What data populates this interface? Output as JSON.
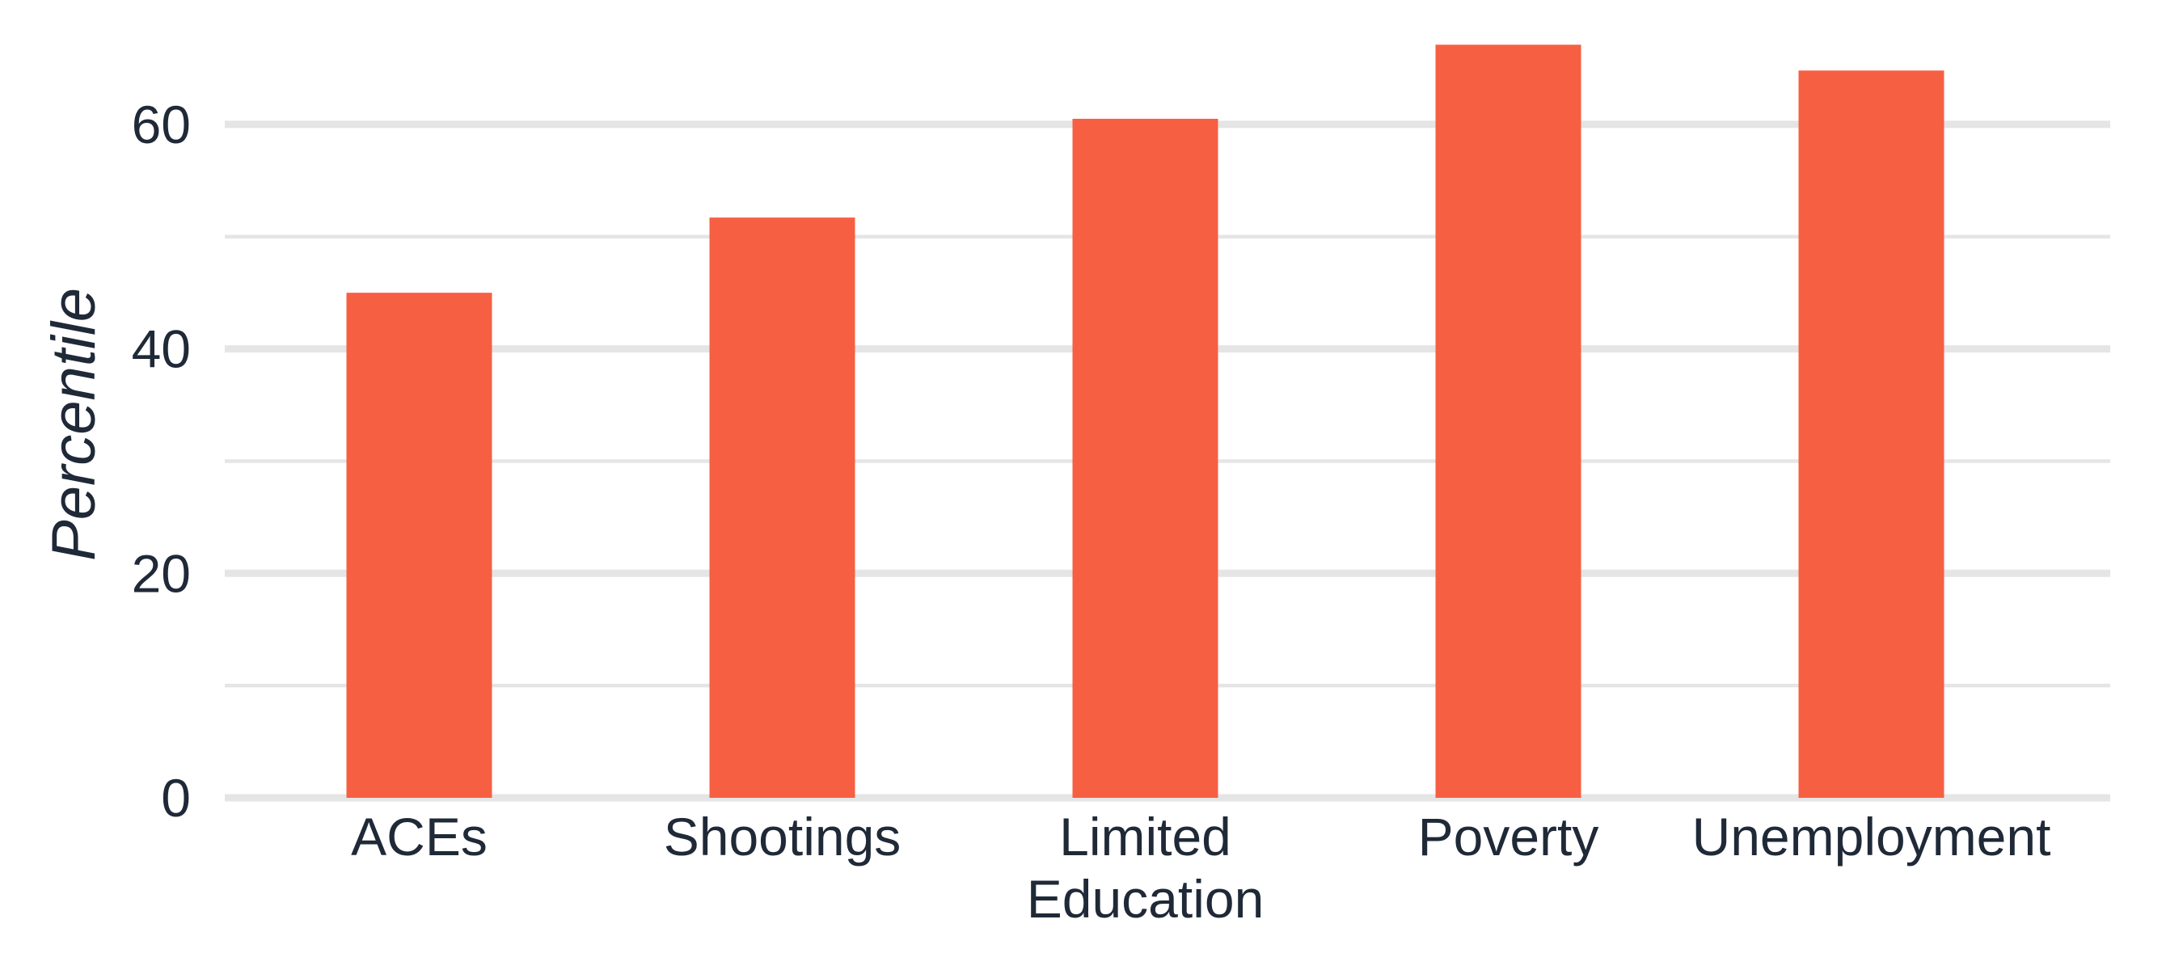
{
  "chart_data": {
    "type": "bar",
    "title": "",
    "xlabel": "",
    "ylabel": "Percentile",
    "categories": [
      [
        "ACEs"
      ],
      [
        "Shootings"
      ],
      [
        "Limited",
        "Education"
      ],
      [
        "Poverty"
      ],
      [
        "Unemployment"
      ]
    ],
    "values": [
      45.0,
      51.7,
      60.5,
      67.1,
      64.8
    ],
    "ylim": [
      0,
      68
    ],
    "yticks": [
      0,
      20,
      40,
      60
    ],
    "minor_yticks": [
      10,
      30,
      50
    ],
    "grid": true,
    "legend": "none",
    "colors": {
      "bar": "#f75f43",
      "grid": "#e5e5e5",
      "text": "#1f2937"
    }
  }
}
